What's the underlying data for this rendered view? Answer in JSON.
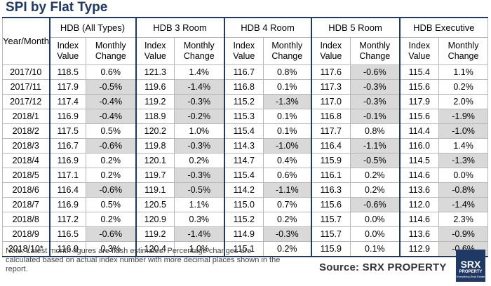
{
  "title": "SPI by Flat Type",
  "header": {
    "first_col": "Year/Month",
    "groups": [
      "HDB (All Types)",
      "HDB 3 Room",
      "HDB 4 Room",
      "HDB 5 Room",
      "HDB Executive"
    ],
    "sub_index": "Index Value",
    "sub_change": "Monthly Change"
  },
  "rows": [
    {
      "period": "2017/10",
      "cells": [
        "118.5",
        "0.6%",
        "121.3",
        "1.4%",
        "116.7",
        "0.8%",
        "117.6",
        "-0.6%",
        "115.4",
        "1.1%"
      ]
    },
    {
      "period": "2017/11",
      "cells": [
        "117.9",
        "-0.5%",
        "119.6",
        "-1.4%",
        "116.8",
        "0.1%",
        "117.3",
        "-0.3%",
        "115.6",
        "0.2%"
      ]
    },
    {
      "period": "2017/12",
      "cells": [
        "117.4",
        "-0.4%",
        "119.2",
        "-0.3%",
        "115.2",
        "-1.3%",
        "117.0",
        "-0.3%",
        "117.9",
        "2.0%"
      ]
    },
    {
      "period": "2018/1",
      "cells": [
        "116.9",
        "-0.4%",
        "118.9",
        "-0.2%",
        "115.3",
        "0.1%",
        "116.8",
        "-0.1%",
        "115.6",
        "-1.9%"
      ]
    },
    {
      "period": "2018/2",
      "cells": [
        "117.5",
        "0.5%",
        "120.2",
        "1.0%",
        "115.4",
        "0.1%",
        "117.7",
        "0.8%",
        "114.4",
        "-1.0%"
      ]
    },
    {
      "period": "2018/3",
      "cells": [
        "116.7",
        "-0.6%",
        "119.8",
        "-0.3%",
        "114.3",
        "-1.0%",
        "116.4",
        "-1.1%",
        "116.0",
        "1.4%"
      ]
    },
    {
      "period": "2018/4",
      "cells": [
        "116.9",
        "0.2%",
        "120.1",
        "0.2%",
        "114.7",
        "0.4%",
        "115.9",
        "-0.5%",
        "114.5",
        "-1.3%"
      ]
    },
    {
      "period": "2018/5",
      "cells": [
        "117.1",
        "0.2%",
        "119.7",
        "-0.3%",
        "115.4",
        "0.6%",
        "116.1",
        "0.2%",
        "114.6",
        "0.0%"
      ]
    },
    {
      "period": "2018/6",
      "cells": [
        "116.4",
        "-0.6%",
        "119.1",
        "-0.5%",
        "114.2",
        "-1.1%",
        "116.3",
        "0.2%",
        "113.6",
        "-0.8%"
      ]
    },
    {
      "period": "2018/7",
      "cells": [
        "116.9",
        "0.5%",
        "120.5",
        "1.1%",
        "115.0",
        "0.7%",
        "115.6",
        "-0.6%",
        "112.0",
        "-1.4%"
      ]
    },
    {
      "period": "2018/8",
      "cells": [
        "117.2",
        "0.2%",
        "120.9",
        "0.3%",
        "115.2",
        "0.2%",
        "115.7",
        "0.0%",
        "114.6",
        "2.3%"
      ]
    },
    {
      "period": "2018/9",
      "cells": [
        "116.5",
        "-0.6%",
        "119.2",
        "-1.4%",
        "114.9",
        "-0.3%",
        "115.7",
        "0.0%",
        "113.6",
        "-0.9%"
      ]
    },
    {
      "period": "2018/10*",
      "cells": [
        "116.9",
        "0.3%",
        "120.4",
        "1.0%",
        "115.1",
        "0.2%",
        "115.9",
        "0.1%",
        "112.9",
        "-0.6%"
      ]
    }
  ],
  "note": "Note: Latest month figures are flash estimates. Percentage changes are calculated based on actual index number with more decimal places shown in the report.",
  "source": "Source:  SRX PROPERTY",
  "logo": {
    "line1": "SRX",
    "line2": "PROPERTY",
    "line3": "Everything Real Estate"
  },
  "colors": {
    "title": "#1f3864",
    "negative_fill": "#d9d9d9",
    "border": "#b8b8b8"
  }
}
